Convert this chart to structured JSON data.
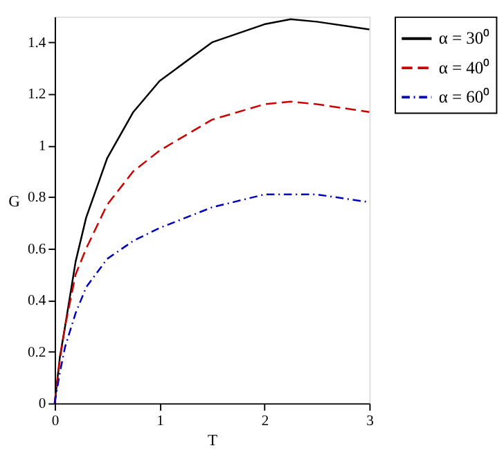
{
  "chart_data": {
    "type": "line",
    "xlabel": "T",
    "ylabel": "G",
    "xlim": [
      0,
      3
    ],
    "ylim": [
      0,
      1.5
    ],
    "xticks": [
      0,
      1,
      2,
      3
    ],
    "yticks": [
      0,
      0.2,
      0.4,
      0.6,
      0.8,
      1,
      1.2,
      1.4
    ],
    "grid": false,
    "legend": "right",
    "marker": "none",
    "x": [
      0,
      0.05,
      0.1,
      0.2,
      0.3,
      0.5,
      0.75,
      1,
      1.5,
      2,
      2.25,
      2.5,
      3
    ],
    "series": [
      {
        "name": "α = 30⁰",
        "color": "#000000",
        "line_style": "solid",
        "values": [
          0,
          0.18,
          0.3,
          0.55,
          0.72,
          0.95,
          1.13,
          1.25,
          1.4,
          1.47,
          1.49,
          1.48,
          1.45
        ]
      },
      {
        "name": "α = 40⁰",
        "color": "#cc0000",
        "line_style": "dashed",
        "values": [
          0,
          0.17,
          0.3,
          0.5,
          0.6,
          0.77,
          0.9,
          0.98,
          1.1,
          1.16,
          1.17,
          1.16,
          1.13
        ]
      },
      {
        "name": "α = 60⁰",
        "color": "#0000bb",
        "line_style": "dotted",
        "values": [
          0,
          0.12,
          0.22,
          0.35,
          0.45,
          0.56,
          0.63,
          0.68,
          0.76,
          0.81,
          0.81,
          0.81,
          0.78
        ]
      }
    ]
  }
}
